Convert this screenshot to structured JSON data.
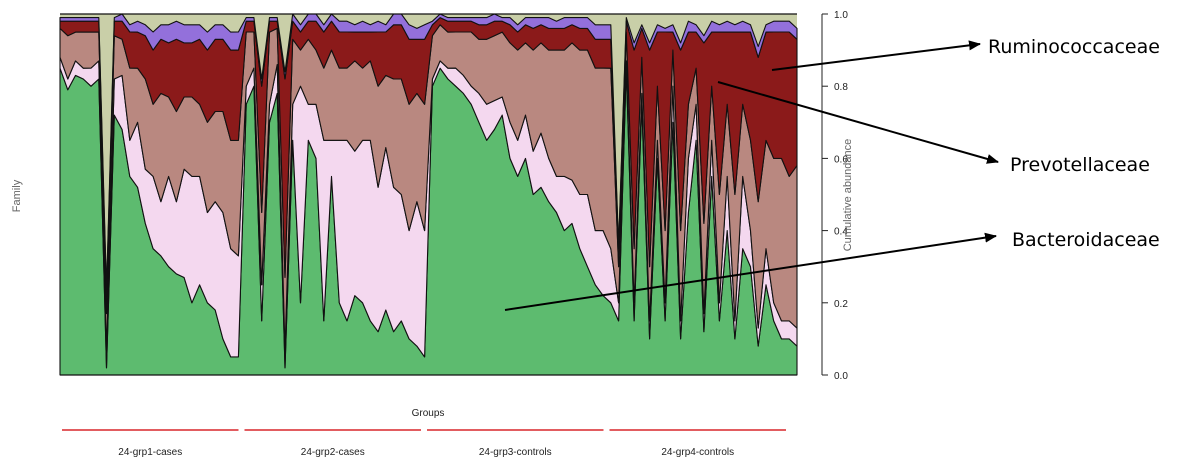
{
  "chart_data": {
    "type": "area",
    "title": "",
    "xlabel": "Groups",
    "ylabel": "Cumulative abundance",
    "side_label": "Family",
    "ylim": [
      0,
      1
    ],
    "yticks": [
      "0.0",
      "0.2",
      "0.4",
      "0.6",
      "0.8",
      "1.0"
    ],
    "grid": false,
    "samples_per_group": 24,
    "groups": [
      "24-grp1-cases",
      "24-grp2-cases",
      "24-grp3-controls",
      "24-grp4-controls"
    ],
    "group_color": "#d9262b",
    "series": [
      {
        "name": "Bacteroidaceae",
        "color": "#5dbb6f",
        "values": [
          0.85,
          0.79,
          0.83,
          0.82,
          0.8,
          0.82,
          0.02,
          0.72,
          0.68,
          0.55,
          0.52,
          0.42,
          0.35,
          0.33,
          0.3,
          0.28,
          0.27,
          0.2,
          0.25,
          0.2,
          0.18,
          0.1,
          0.05,
          0.05,
          0.75,
          0.8,
          0.15,
          0.7,
          0.78,
          0.02,
          0.65,
          0.2,
          0.65,
          0.6,
          0.15,
          0.55,
          0.2,
          0.15,
          0.22,
          0.2,
          0.15,
          0.12,
          0.18,
          0.12,
          0.15,
          0.1,
          0.08,
          0.05,
          0.8,
          0.85,
          0.82,
          0.8,
          0.78,
          0.75,
          0.7,
          0.65,
          0.68,
          0.72,
          0.6,
          0.55,
          0.6,
          0.5,
          0.52,
          0.48,
          0.45,
          0.4,
          0.42,
          0.35,
          0.3,
          0.25,
          0.22,
          0.2,
          0.15,
          0.85,
          0.15,
          0.75,
          0.1,
          0.6,
          0.15,
          0.7,
          0.1,
          0.45,
          0.65,
          0.12,
          0.55,
          0.15,
          0.4,
          0.1,
          0.35,
          0.3,
          0.08,
          0.25,
          0.15,
          0.1,
          0.1,
          0.08
        ]
      },
      {
        "name": "Prevotellaceae",
        "color": "#f4d8ef",
        "values": [
          0.03,
          0.03,
          0.04,
          0.03,
          0.05,
          0.05,
          0.05,
          0.1,
          0.15,
          0.1,
          0.18,
          0.15,
          0.2,
          0.15,
          0.25,
          0.2,
          0.3,
          0.35,
          0.3,
          0.25,
          0.3,
          0.35,
          0.3,
          0.28,
          0.05,
          0.05,
          0.1,
          0.05,
          0.08,
          0.05,
          0.1,
          0.6,
          0.1,
          0.15,
          0.5,
          0.1,
          0.45,
          0.5,
          0.4,
          0.45,
          0.5,
          0.4,
          0.45,
          0.4,
          0.35,
          0.3,
          0.4,
          0.35,
          0.02,
          0.02,
          0.03,
          0.05,
          0.05,
          0.05,
          0.08,
          0.1,
          0.08,
          0.05,
          0.1,
          0.1,
          0.12,
          0.12,
          0.15,
          0.12,
          0.1,
          0.15,
          0.12,
          0.15,
          0.2,
          0.15,
          0.18,
          0.15,
          0.05,
          0.02,
          0.05,
          0.03,
          0.05,
          0.05,
          0.05,
          0.1,
          0.05,
          0.15,
          0.1,
          0.05,
          0.1,
          0.05,
          0.15,
          0.05,
          0.2,
          0.1,
          0.05,
          0.1,
          0.05,
          0.05,
          0.05,
          0.05
        ]
      },
      {
        "name": "Ruminococcaceae",
        "color": "#b98880",
        "values": [
          0.08,
          0.12,
          0.08,
          0.1,
          0.1,
          0.08,
          0.1,
          0.12,
          0.1,
          0.2,
          0.15,
          0.25,
          0.2,
          0.3,
          0.22,
          0.25,
          0.2,
          0.22,
          0.2,
          0.25,
          0.25,
          0.28,
          0.3,
          0.32,
          0.15,
          0.1,
          0.2,
          0.2,
          0.1,
          0.2,
          0.18,
          0.1,
          0.18,
          0.15,
          0.2,
          0.25,
          0.2,
          0.2,
          0.25,
          0.2,
          0.22,
          0.28,
          0.2,
          0.3,
          0.32,
          0.35,
          0.3,
          0.35,
          0.12,
          0.1,
          0.1,
          0.1,
          0.12,
          0.15,
          0.15,
          0.18,
          0.18,
          0.18,
          0.22,
          0.25,
          0.2,
          0.28,
          0.25,
          0.3,
          0.35,
          0.35,
          0.38,
          0.4,
          0.4,
          0.45,
          0.45,
          0.5,
          0.1,
          0.08,
          0.15,
          0.1,
          0.15,
          0.15,
          0.2,
          0.1,
          0.25,
          0.15,
          0.1,
          0.25,
          0.15,
          0.3,
          0.2,
          0.35,
          0.2,
          0.25,
          0.35,
          0.3,
          0.4,
          0.45,
          0.4,
          0.45
        ]
      },
      {
        "name": "",
        "color": "#8b1a1a",
        "values": [
          0.02,
          0.04,
          0.03,
          0.03,
          0.03,
          0.03,
          0.05,
          0.04,
          0.05,
          0.1,
          0.1,
          0.12,
          0.15,
          0.15,
          0.15,
          0.2,
          0.15,
          0.15,
          0.18,
          0.2,
          0.2,
          0.2,
          0.25,
          0.25,
          0.03,
          0.03,
          0.35,
          0.03,
          0.02,
          0.55,
          0.05,
          0.05,
          0.05,
          0.08,
          0.1,
          0.08,
          0.1,
          0.1,
          0.08,
          0.1,
          0.08,
          0.15,
          0.12,
          0.15,
          0.15,
          0.18,
          0.15,
          0.18,
          0.03,
          0.02,
          0.03,
          0.03,
          0.03,
          0.03,
          0.04,
          0.04,
          0.04,
          0.03,
          0.05,
          0.05,
          0.05,
          0.06,
          0.05,
          0.06,
          0.06,
          0.06,
          0.05,
          0.06,
          0.06,
          0.08,
          0.08,
          0.08,
          0.05,
          0.03,
          0.55,
          0.08,
          0.6,
          0.15,
          0.55,
          0.05,
          0.5,
          0.2,
          0.1,
          0.5,
          0.15,
          0.45,
          0.2,
          0.45,
          0.2,
          0.3,
          0.4,
          0.3,
          0.35,
          0.35,
          0.4,
          0.35
        ]
      },
      {
        "name": "",
        "color": "#9370db",
        "values": [
          0.01,
          0.01,
          0.01,
          0.01,
          0.01,
          0.01,
          0.02,
          0.01,
          0.02,
          0.02,
          0.03,
          0.03,
          0.05,
          0.04,
          0.05,
          0.05,
          0.05,
          0.05,
          0.04,
          0.05,
          0.04,
          0.04,
          0.05,
          0.05,
          0.01,
          0.01,
          0.02,
          0.01,
          0.01,
          0.02,
          0.02,
          0.02,
          0.02,
          0.02,
          0.02,
          0.03,
          0.03,
          0.03,
          0.02,
          0.03,
          0.02,
          0.03,
          0.02,
          0.03,
          0.03,
          0.04,
          0.03,
          0.04,
          0.01,
          0.01,
          0.01,
          0.01,
          0.01,
          0.01,
          0.02,
          0.02,
          0.02,
          0.01,
          0.02,
          0.02,
          0.02,
          0.03,
          0.02,
          0.03,
          0.02,
          0.03,
          0.02,
          0.03,
          0.03,
          0.04,
          0.04,
          0.04,
          0.01,
          0.01,
          0.02,
          0.01,
          0.02,
          0.02,
          0.01,
          0.02,
          0.02,
          0.03,
          0.02,
          0.02,
          0.03,
          0.02,
          0.03,
          0.02,
          0.03,
          0.02,
          0.03,
          0.02,
          0.03,
          0.03,
          0.03,
          0.03
        ]
      }
    ],
    "annotations": [
      {
        "text": "Ruminococcaceae"
      },
      {
        "text": "Prevotellaceae"
      },
      {
        "text": "Bacteroidaceae"
      }
    ]
  }
}
